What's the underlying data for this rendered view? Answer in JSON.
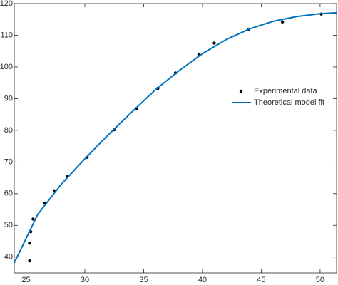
{
  "chart_data": {
    "type": "line",
    "xlim": [
      24,
      51.4
    ],
    "ylim": [
      35,
      120
    ],
    "xticks": [
      25,
      30,
      35,
      40,
      45,
      50
    ],
    "yticks": [
      40,
      50,
      60,
      70,
      80,
      90,
      100,
      110,
      120
    ],
    "grid": false,
    "legend_position": "east",
    "series": [
      {
        "name": "Experimental data",
        "type": "scatter",
        "color": "#000000",
        "x": [
          25.3,
          25.3,
          25.4,
          25.6,
          26.6,
          27.4,
          28.5,
          30.2,
          32.5,
          34.4,
          36.2,
          37.7,
          39.7,
          41.0,
          43.9,
          46.8,
          50.1
        ],
        "values": [
          38.8,
          44.4,
          48.0,
          52.0,
          57.0,
          60.9,
          65.4,
          71.5,
          80.2,
          86.9,
          93.2,
          98.1,
          103.9,
          107.5,
          111.8,
          114.2,
          116.7
        ]
      },
      {
        "name": "Theoretical model fit",
        "type": "line",
        "color": "#0072bd",
        "x": [
          24,
          26,
          28,
          30,
          32,
          34,
          36,
          38,
          40,
          42,
          44,
          46,
          48,
          50,
          51.4
        ],
        "values": [
          38.2,
          53.5,
          63.0,
          71.0,
          78.6,
          85.8,
          92.8,
          98.8,
          104.2,
          108.6,
          112.0,
          114.4,
          115.9,
          116.8,
          117.1
        ]
      }
    ]
  }
}
